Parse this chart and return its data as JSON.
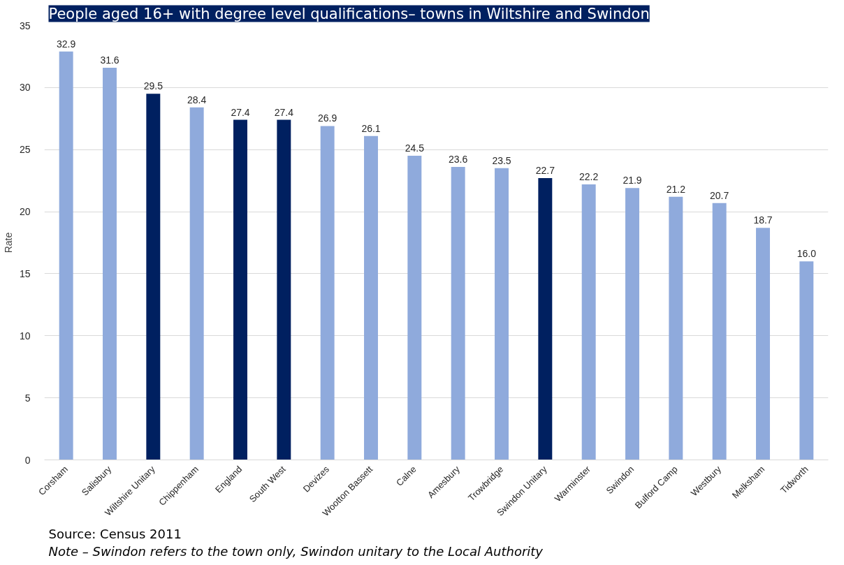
{
  "chart_data": {
    "type": "bar",
    "title": "People aged 16+ with degree level qualifications– towns in Wiltshire and Swindon",
    "ylabel": "Rate",
    "categories": [
      "Corsham",
      "Salisbury",
      "Wiltshire Unitary",
      "Chippenham",
      "England",
      "South West",
      "Devizes",
      "Wootton Bassett",
      "Calne",
      "Amesbury",
      "Trowbridge",
      "Swindon Unitary",
      "Warminster",
      "Swindon",
      "Bulford Camp",
      "Westbury",
      "Melksham",
      "Tidworth"
    ],
    "values": [
      32.9,
      31.6,
      29.5,
      28.4,
      27.4,
      27.4,
      26.9,
      26.1,
      24.5,
      23.6,
      23.5,
      22.7,
      22.2,
      21.9,
      21.2,
      20.7,
      18.7,
      16.0
    ],
    "value_labels": [
      "32.9",
      "31.6",
      "29.5",
      "28.4",
      "27.4",
      "27.4",
      "26.9",
      "26.1",
      "24.5",
      "23.6",
      "23.5",
      "22.7",
      "22.2",
      "21.9",
      "21.2",
      "20.7",
      "18.7",
      "16.0"
    ],
    "colors": [
      "#8faadc",
      "#8faadc",
      "#002060",
      "#8faadc",
      "#002060",
      "#002060",
      "#8faadc",
      "#8faadc",
      "#8faadc",
      "#8faadc",
      "#8faadc",
      "#002060",
      "#8faadc",
      "#8faadc",
      "#8faadc",
      "#8faadc",
      "#8faadc",
      "#8faadc"
    ],
    "ylim": [
      0,
      35
    ],
    "yticks": [
      0,
      5,
      10,
      15,
      20,
      25,
      30,
      35
    ],
    "grid": "y",
    "annotations": [
      "Source: Census 2011",
      "Note – Swindon refers to the town only, Swindon unitary to the Local Authority"
    ]
  }
}
